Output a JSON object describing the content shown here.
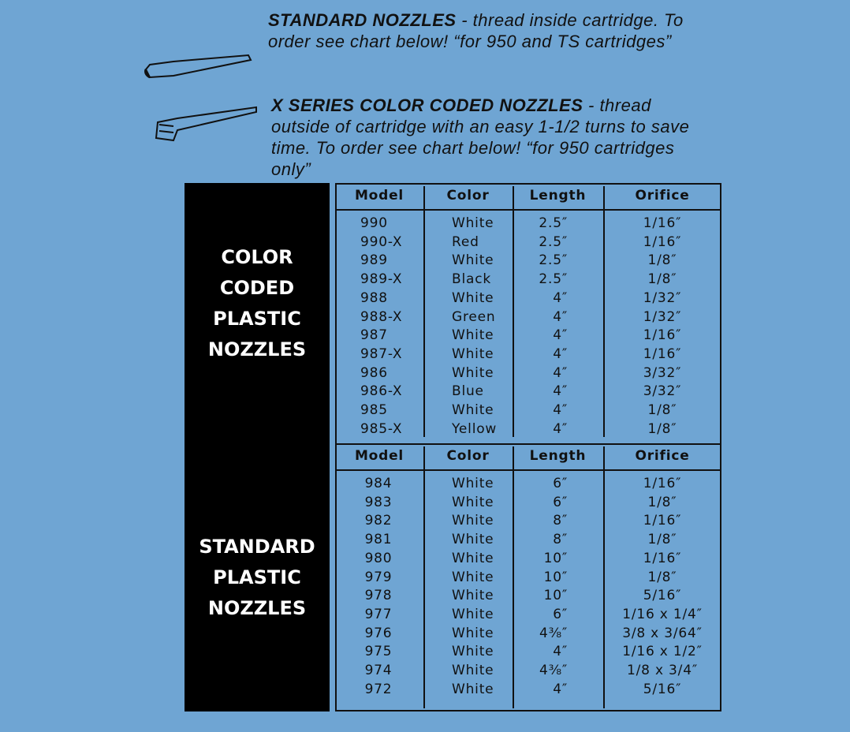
{
  "intro": [
    {
      "title": "STANDARD NOZZLES",
      "text": "- thread inside cartridge. To order see chart below! “for 950 and TS cartridges”"
    },
    {
      "title": "X SERIES COLOR CODED NOZZLES",
      "text": "- thread outside of cartridge with an easy 1-1/2 turns to save time. To order see chart below! “for 950 cartridges only”"
    }
  ],
  "sections": [
    {
      "label": [
        "COLOR",
        "CODED",
        "PLASTIC",
        "NOZZLES"
      ],
      "columns": [
        "Model",
        "Color",
        "Length",
        "Orifice"
      ],
      "rows": [
        [
          "990",
          "White",
          "2.5″",
          "1/16″"
        ],
        [
          "990-X",
          "Red",
          "2.5″",
          "1/16″"
        ],
        [
          "989",
          "White",
          "2.5″",
          "1/8″"
        ],
        [
          "989-X",
          "Black",
          "2.5″",
          "1/8″"
        ],
        [
          "988",
          "White",
          "4″",
          "1/32″"
        ],
        [
          "988-X",
          "Green",
          "4″",
          "1/32″"
        ],
        [
          "987",
          "White",
          "4″",
          "1/16″"
        ],
        [
          "987-X",
          "White",
          "4″",
          "1/16″"
        ],
        [
          "986",
          "White",
          "4″",
          "3/32″"
        ],
        [
          "986-X",
          "Blue",
          "4″",
          "3/32″"
        ],
        [
          "985",
          "White",
          "4″",
          "1/8″"
        ],
        [
          "985-X",
          "Yellow",
          "4″",
          "1/8″"
        ]
      ]
    },
    {
      "label": [
        "STANDARD",
        "PLASTIC",
        "NOZZLES"
      ],
      "columns": [
        "Model",
        "Color",
        "Length",
        "Orifice"
      ],
      "rows": [
        [
          "984",
          "White",
          "6″",
          "1/16″"
        ],
        [
          "983",
          "White",
          "6″",
          "1/8″"
        ],
        [
          "982",
          "White",
          "8″",
          "1/16″"
        ],
        [
          "981",
          "White",
          "8″",
          "1/8″"
        ],
        [
          "980",
          "White",
          "10″",
          "1/16″"
        ],
        [
          "979",
          "White",
          "10″",
          "1/8″"
        ],
        [
          "978",
          "White",
          "10″",
          "5/16″"
        ],
        [
          "977",
          "White",
          "6″",
          "1/16 x 1/4″"
        ],
        [
          "976",
          "White",
          "4⅜″",
          "3/8 x 3/64″"
        ],
        [
          "975",
          "White",
          "4″",
          "1/16 x 1/2″"
        ],
        [
          "974",
          "White",
          "4⅜″",
          "1/8 x 3/4″"
        ],
        [
          "972",
          "White",
          "4″",
          "5/16″"
        ]
      ]
    }
  ]
}
